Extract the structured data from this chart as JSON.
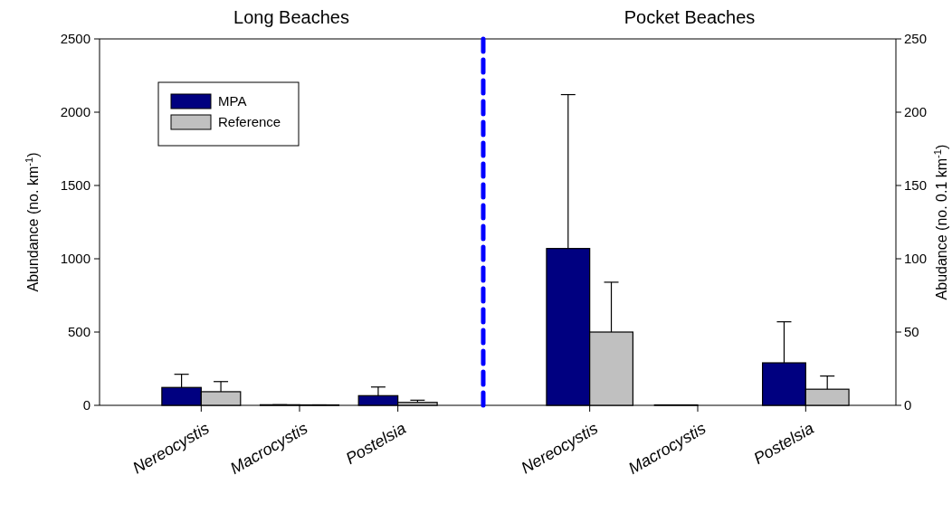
{
  "chart_data": [
    {
      "type": "bar",
      "title": "Long Beaches",
      "categories": [
        "Nereocystis",
        "Macrocystis",
        "Postelsia"
      ],
      "series": [
        {
          "name": "MPA",
          "color": "#000080",
          "values": [
            122,
            4,
            66
          ],
          "errors": [
            [
              122,
              212
            ],
            [
              4,
              4
            ],
            [
              66,
              125
            ]
          ]
        },
        {
          "name": "Reference",
          "color": "#c0c0c0",
          "values": [
            93,
            3,
            20
          ],
          "errors": [
            [
              93,
              162
            ],
            [
              3,
              3
            ],
            [
              20,
              35
            ]
          ]
        }
      ],
      "ylabel": "Abundance (no. km$^{-1}$)",
      "ylim": [
        0,
        2500
      ],
      "yticks": [
        0,
        500,
        1000,
        1500,
        2000,
        2500
      ],
      "legend": "top left"
    },
    {
      "type": "bar",
      "title": "Pocket Beaches",
      "categories": [
        "Nereocystis",
        "Macrocystis",
        "Postelsia"
      ],
      "series": [
        {
          "color": "#000080",
          "axis": "y2",
          "values": [
            107,
            0.3,
            29
          ],
          "errors": [
            [
              107,
              212
            ],
            null,
            [
              29,
              57
            ]
          ]
        },
        {
          "color": "#c0c0c0",
          "axis": "y2",
          "values": [
            50,
            0,
            11
          ],
          "errors": [
            [
              50,
              84
            ],
            null,
            [
              11,
              20
            ]
          ]
        }
      ],
      "y2label": "Abudance (no. 0.1 km$^{-1}$)",
      "y2lim": [
        0,
        250
      ],
      "y2ticks": [
        0,
        50,
        100,
        150,
        200,
        250
      ],
      "legend": false
    }
  ]
}
